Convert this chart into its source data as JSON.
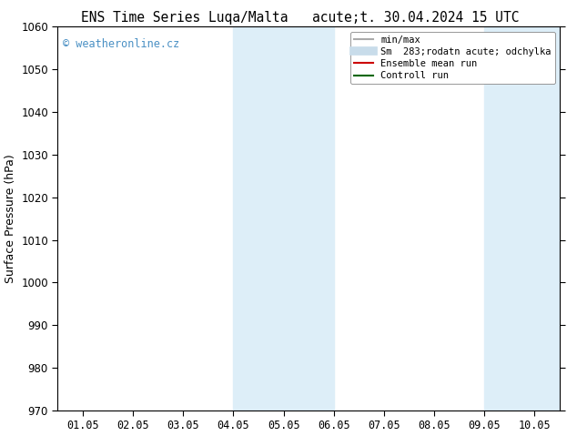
{
  "title_left": "ENS Time Series Luqa/Malta",
  "title_right": "acute;t. 30.04.2024 15 UTC",
  "ylabel": "Surface Pressure (hPa)",
  "ylim": [
    970,
    1060
  ],
  "yticks": [
    970,
    980,
    990,
    1000,
    1010,
    1020,
    1030,
    1040,
    1050,
    1060
  ],
  "xtick_labels": [
    "01.05",
    "02.05",
    "03.05",
    "04.05",
    "05.05",
    "06.05",
    "07.05",
    "08.05",
    "09.05",
    "10.05"
  ],
  "xtick_positions": [
    0,
    1,
    2,
    3,
    4,
    5,
    6,
    7,
    8,
    9
  ],
  "xlim": [
    -0.5,
    9.5
  ],
  "shade_bands": [
    {
      "xmin": 3.0,
      "xmax": 4.0,
      "color": "#ddeef8",
      "alpha": 1.0
    },
    {
      "xmin": 4.0,
      "xmax": 5.0,
      "color": "#ddeef8",
      "alpha": 1.0
    },
    {
      "xmin": 8.0,
      "xmax": 9.0,
      "color": "#ddeef8",
      "alpha": 1.0
    },
    {
      "xmin": 9.0,
      "xmax": 9.5,
      "color": "#ddeef8",
      "alpha": 1.0
    }
  ],
  "watermark": "© weatheronline.cz",
  "watermark_color": "#4a90c4",
  "background_color": "#ffffff",
  "plot_bg_color": "#ffffff",
  "legend_items": [
    {
      "label": "min/max",
      "color": "#aaaaaa",
      "lw": 1.5,
      "type": "line"
    },
    {
      "label": "Sm  283;rodatn acute; odchylka",
      "color": "#c8dcea",
      "lw": 7,
      "type": "line"
    },
    {
      "label": "Ensemble mean run",
      "color": "#cc0000",
      "lw": 1.5,
      "type": "line"
    },
    {
      "label": "Controll run",
      "color": "#006600",
      "lw": 1.5,
      "type": "line"
    }
  ],
  "title_fontsize": 10.5,
  "tick_fontsize": 8.5,
  "ylabel_fontsize": 9,
  "watermark_fontsize": 8.5
}
